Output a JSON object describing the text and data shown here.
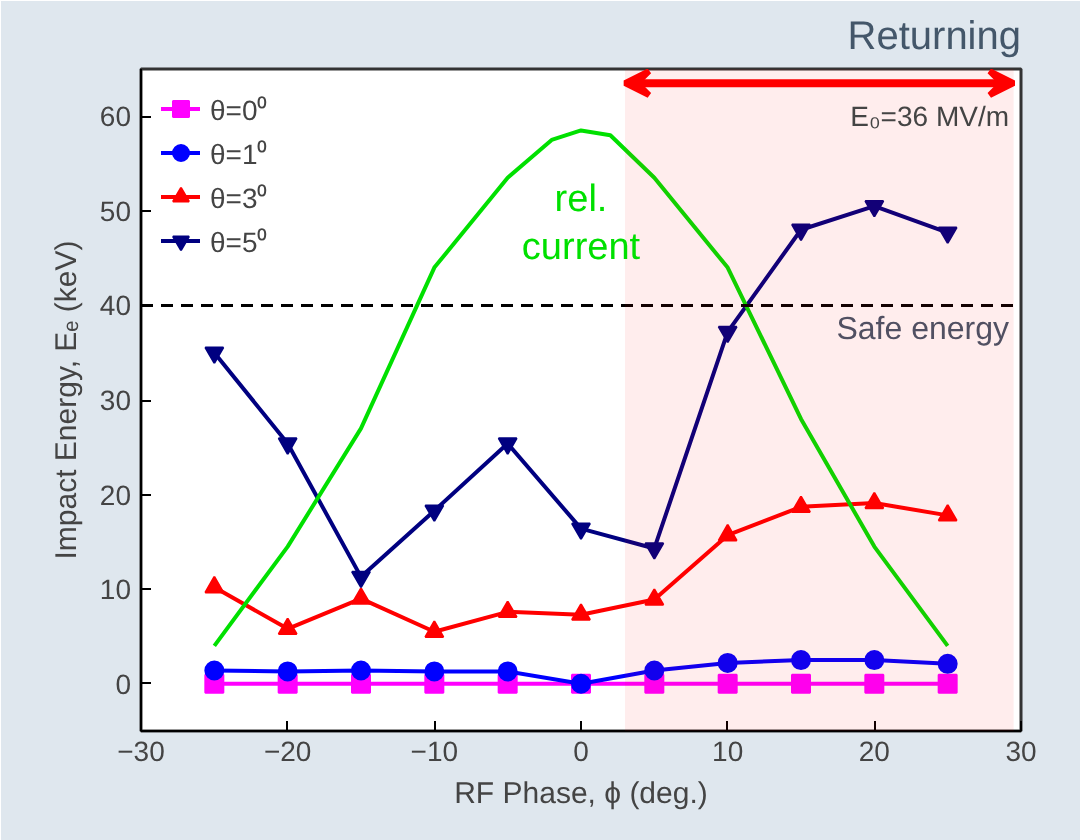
{
  "chart_data": {
    "type": "line",
    "x": [
      -25,
      -20,
      -15,
      -10,
      -5,
      0,
      5,
      10,
      15,
      20,
      25
    ],
    "xlabel": "RF Phase, ϕ (deg.)",
    "ylabel": "Impact Energy, Eₑ (keV)",
    "xlim": [
      -30,
      30
    ],
    "ylim": [
      -5,
      65
    ],
    "xticks": [
      -30,
      -20,
      -10,
      0,
      10,
      20,
      30
    ],
    "yticks": [
      0,
      10,
      20,
      30,
      40,
      50,
      60
    ],
    "grid": false,
    "legend": "top left",
    "line_style": "solid",
    "series": [
      {
        "name": "θ=0⁰",
        "color": "#ff00ff",
        "marker": "square",
        "values": [
          0,
          0,
          0,
          0,
          0,
          0,
          0,
          0,
          0,
          0,
          0
        ]
      },
      {
        "name": "θ=1⁰",
        "color": "#0000ff",
        "marker": "circle",
        "values": [
          1.4,
          1.3,
          1.4,
          1.3,
          1.3,
          0,
          1.4,
          2.2,
          2.5,
          2.5,
          2.1
        ]
      },
      {
        "name": "θ=3⁰",
        "color": "#ff0000",
        "marker": "triangle",
        "values": [
          10.2,
          5.8,
          9.0,
          5.5,
          7.6,
          7.3,
          8.9,
          15.7,
          18.7,
          19.1,
          17.8
        ]
      },
      {
        "name": "θ=5⁰",
        "color": "#000080",
        "marker": "triangle",
        "values": [
          35,
          25.4,
          11.3,
          18.3,
          25.4,
          16.4,
          14.3,
          37.2,
          48,
          50.5,
          47.7
        ]
      },
      {
        "color": "#00e000",
        "marker": "none",
        "x": [
          -25,
          -20,
          -15,
          -10,
          -5,
          -2,
          0,
          2,
          5,
          10,
          15,
          20,
          25
        ],
        "values": [
          4,
          14.5,
          27,
          44,
          53.5,
          57.5,
          58.5,
          58,
          53.5,
          44,
          28,
          14.5,
          4
        ]
      }
    ],
    "ref_lines": [
      {
        "axis": "y",
        "value": 40,
        "label": "Safe energy",
        "color": "#000000",
        "line_style": "dashed"
      }
    ],
    "bands": [
      {
        "axis": "x",
        "from": 3,
        "to": 29.5,
        "label": "Returning",
        "color": "#ff0000"
      }
    ],
    "annotations": [
      "rel. current",
      "E₀=36 MV/m"
    ]
  }
}
